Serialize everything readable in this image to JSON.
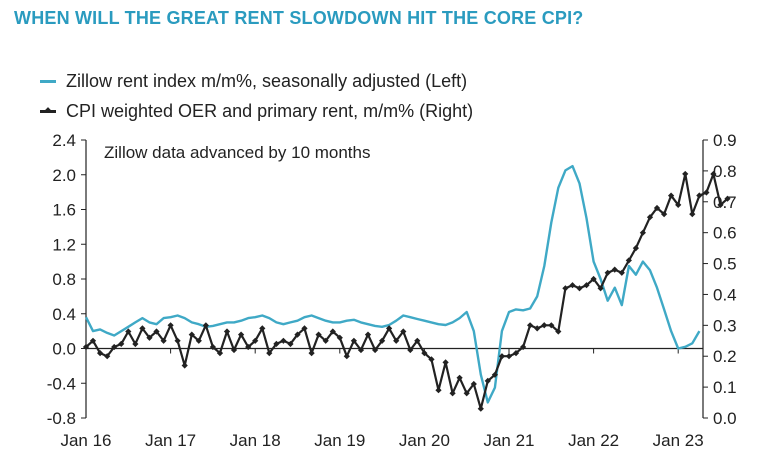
{
  "title": "WHEN WILL THE GREAT RENT SLOWDOWN HIT THE CORE CPI?",
  "chart_data": {
    "type": "line",
    "title": "WHEN WILL THE GREAT RENT SLOWDOWN HIT THE CORE CPI?",
    "annotation": "Zillow data advanced by 10 months",
    "x_ticks": [
      "Jan 16",
      "Jan 17",
      "Jan 18",
      "Jan 19",
      "Jan 20",
      "Jan 21",
      "Jan 22",
      "Jan 23"
    ],
    "y_left": {
      "ylim": [
        -0.8,
        2.4
      ],
      "ticks": [
        "2.4",
        "2.0",
        "1.6",
        "1.2",
        "0.8",
        "0.4",
        "0.0",
        "-0.4",
        "-0.8"
      ]
    },
    "y_right": {
      "ylim": [
        0.0,
        0.9
      ],
      "ticks": [
        "0.9",
        "0.8",
        "0.7",
        "0.6",
        "0.5",
        "0.4",
        "0.3",
        "0.2",
        "0.1",
        "0.0"
      ]
    },
    "x_start": "2016-01",
    "colors": {
      "zillow": "#3fa9c6",
      "cpi": "#222222"
    },
    "series": [
      {
        "name": "Zillow rent index m/m%, seasonally adjusted (Left)",
        "axis": "left",
        "values": [
          0.36,
          0.2,
          0.22,
          0.18,
          0.15,
          0.2,
          0.25,
          0.3,
          0.35,
          0.3,
          0.28,
          0.35,
          0.36,
          0.38,
          0.35,
          0.3,
          0.28,
          0.25,
          0.26,
          0.28,
          0.3,
          0.3,
          0.32,
          0.35,
          0.36,
          0.38,
          0.35,
          0.3,
          0.28,
          0.3,
          0.32,
          0.36,
          0.38,
          0.35,
          0.32,
          0.3,
          0.3,
          0.32,
          0.33,
          0.3,
          0.28,
          0.26,
          0.25,
          0.27,
          0.32,
          0.38,
          0.36,
          0.34,
          0.32,
          0.3,
          0.28,
          0.27,
          0.3,
          0.35,
          0.42,
          0.2,
          -0.3,
          -0.62,
          -0.45,
          0.2,
          0.42,
          0.45,
          0.44,
          0.46,
          0.6,
          0.95,
          1.45,
          1.85,
          2.05,
          2.1,
          1.9,
          1.5,
          1.0,
          0.8,
          0.55,
          0.7,
          0.5,
          0.95,
          0.85,
          1.0,
          0.9,
          0.7,
          0.45,
          0.2,
          0.0,
          0.02,
          0.06,
          0.2
        ]
      },
      {
        "name": "CPI weighted OER and primary rent, m/m% (Right)",
        "axis": "right",
        "values": [
          0.23,
          0.25,
          0.21,
          0.2,
          0.23,
          0.24,
          0.28,
          0.24,
          0.29,
          0.26,
          0.28,
          0.25,
          0.3,
          0.25,
          0.17,
          0.27,
          0.25,
          0.3,
          0.23,
          0.21,
          0.28,
          0.22,
          0.27,
          0.23,
          0.25,
          0.29,
          0.21,
          0.24,
          0.25,
          0.24,
          0.27,
          0.29,
          0.21,
          0.27,
          0.25,
          0.28,
          0.26,
          0.2,
          0.25,
          0.22,
          0.27,
          0.22,
          0.25,
          0.29,
          0.25,
          0.28,
          0.22,
          0.25,
          0.21,
          0.19,
          0.09,
          0.18,
          0.08,
          0.13,
          0.08,
          0.11,
          0.03,
          0.12,
          0.14,
          0.2,
          0.2,
          0.21,
          0.23,
          0.3,
          0.29,
          0.3,
          0.3,
          0.28,
          0.42,
          0.43,
          0.42,
          0.43,
          0.45,
          0.42,
          0.47,
          0.48,
          0.47,
          0.51,
          0.55,
          0.6,
          0.65,
          0.68,
          0.66,
          0.72,
          0.69,
          0.79,
          0.66,
          0.72,
          0.73,
          0.79,
          0.69,
          0.71
        ]
      }
    ]
  }
}
